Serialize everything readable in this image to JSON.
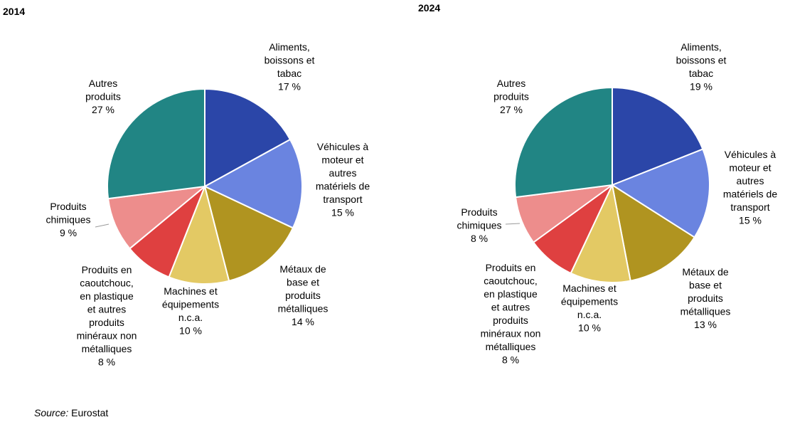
{
  "source": {
    "label": "Source:",
    "value": "Eurostat"
  },
  "chart_data": [
    {
      "type": "pie",
      "title": "2014",
      "slices": [
        {
          "name": "Aliments, boissons et tabac",
          "label_lines": [
            "Aliments,",
            "boissons et",
            "tabac"
          ],
          "value_label": "17 %",
          "value": 17,
          "color": "#2b46a8"
        },
        {
          "name": "Véhicules à moteur et autres matériels de transport",
          "label_lines": [
            "Véhicules à",
            "moteur et",
            "autres",
            "matériels de",
            "transport"
          ],
          "value_label": "15 %",
          "value": 15,
          "color": "#6a84e0"
        },
        {
          "name": "Métaux de base et produits métalliques",
          "label_lines": [
            "Métaux de",
            "base et",
            "produits",
            "métalliques"
          ],
          "value_label": "14 %",
          "value": 14,
          "color": "#b09420"
        },
        {
          "name": "Machines et équipements n.c.a.",
          "label_lines": [
            "Machines et",
            "équipements",
            "n.c.a."
          ],
          "value_label": "10 %",
          "value": 10,
          "color": "#e3c964"
        },
        {
          "name": "Produits en caoutchouc, en plastique et autres produits minéraux non métalliques",
          "label_lines": [
            "Produits en",
            "caoutchouc,",
            "en plastique",
            "et autres",
            "produits",
            "minéraux non",
            "métalliques"
          ],
          "value_label": "8 %",
          "value": 8,
          "color": "#df4040"
        },
        {
          "name": "Produits chimiques",
          "label_lines": [
            "Produits",
            "chimiques"
          ],
          "value_label": "9 %",
          "value": 9,
          "color": "#ed8d8c"
        },
        {
          "name": "Autres produits",
          "label_lines": [
            "Autres",
            "produits"
          ],
          "value_label": "27 %",
          "value": 27,
          "color": "#218584"
        }
      ]
    },
    {
      "type": "pie",
      "title": "2024",
      "slices": [
        {
          "name": "Aliments, boissons et tabac",
          "label_lines": [
            "Aliments,",
            "boissons et",
            "tabac"
          ],
          "value_label": "19 %",
          "value": 19,
          "color": "#2b46a8"
        },
        {
          "name": "Véhicules à moteur et autres matériels de transport",
          "label_lines": [
            "Véhicules à",
            "moteur et",
            "autres",
            "matériels de",
            "transport"
          ],
          "value_label": "15 %",
          "value": 15,
          "color": "#6a84e0"
        },
        {
          "name": "Métaux de base et produits métalliques",
          "label_lines": [
            "Métaux de",
            "base et",
            "produits",
            "métalliques"
          ],
          "value_label": "13 %",
          "value": 13,
          "color": "#b09420"
        },
        {
          "name": "Machines et équipements n.c.a.",
          "label_lines": [
            "Machines et",
            "équipements",
            "n.c.a."
          ],
          "value_label": "10 %",
          "value": 10,
          "color": "#e3c964"
        },
        {
          "name": "Produits en caoutchouc, en plastique et autres produits minéraux non métalliques",
          "label_lines": [
            "Produits en",
            "caoutchouc,",
            "en plastique",
            "et autres",
            "produits",
            "minéraux non",
            "métalliques"
          ],
          "value_label": "8 %",
          "value": 8,
          "color": "#df4040"
        },
        {
          "name": "Produits chimiques",
          "label_lines": [
            "Produits",
            "chimiques"
          ],
          "value_label": "8 %",
          "value": 8,
          "color": "#ed8d8c"
        },
        {
          "name": "Autres produits",
          "label_lines": [
            "Autres",
            "produits"
          ],
          "value_label": "27 %",
          "value": 27,
          "color": "#218584"
        }
      ]
    }
  ]
}
